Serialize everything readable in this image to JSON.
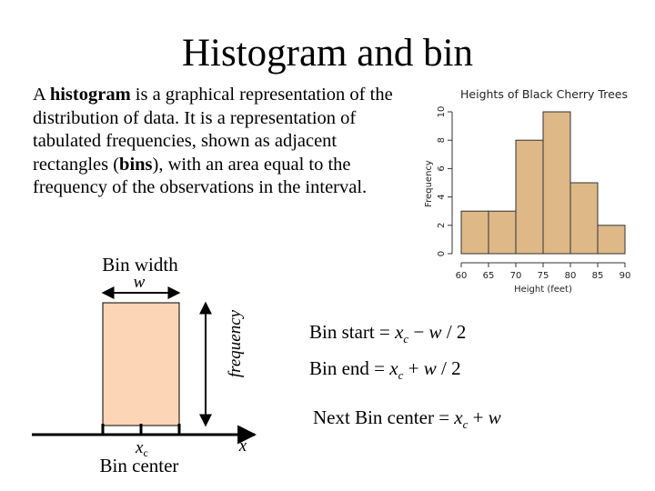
{
  "slide": {
    "title": "Histogram and bin",
    "description": {
      "part1": "A ",
      "term_histogram": "histogram",
      "part2": " is a graphical representation of the distribution of data. It is a representation of tabulated frequencies, shown as adjacent rectangles (",
      "term_bins": "bins",
      "part3": "), with an area equal to the frequency of the observations in the interval."
    }
  },
  "chart_data": {
    "type": "bar",
    "title": "Heights of Black Cherry Trees",
    "xlabel": "Height (feet)",
    "ylabel": "Frequency",
    "bin_edges": [
      60,
      65,
      70,
      75,
      80,
      85,
      90
    ],
    "values": [
      3,
      3,
      8,
      10,
      5,
      2
    ],
    "x_ticks": [
      "60",
      "65",
      "70",
      "75",
      "80",
      "85",
      "90"
    ],
    "y_ticks": [
      "0",
      "2",
      "4",
      "6",
      "8",
      "10"
    ],
    "xlim": [
      60,
      90
    ],
    "ylim": [
      0,
      10
    ],
    "bar_color": "#deb887",
    "grid": false
  },
  "bin_diagram": {
    "bin_width_label": "Bin width",
    "w_label": "w",
    "frequency_label": "frequency",
    "center_symbol": "x",
    "center_subscript": "c",
    "center_label": "Bin center",
    "x_axis_label": "x",
    "bin_fill_color": "#fbd5b5"
  },
  "formulas": [
    {
      "label": "Bin start",
      "sign": "−"
    },
    {
      "label": "Bin end",
      "sign": "+"
    },
    {
      "label": "Next Bin center",
      "sign": "+"
    }
  ]
}
